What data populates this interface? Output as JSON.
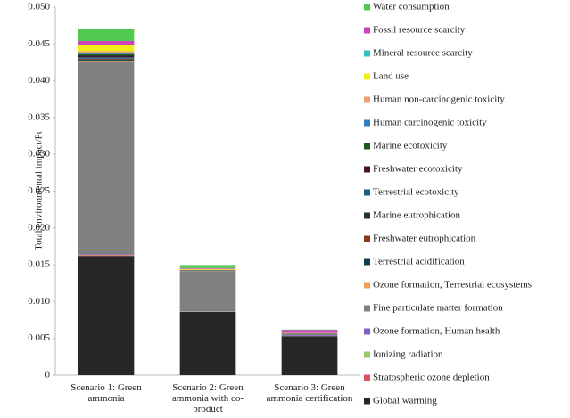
{
  "chart_data": {
    "type": "stacked_bar",
    "y_label": "Total environmental impact/Pt",
    "categories": [
      "Scenario 1: Green ammonia",
      "Scenario 2: Green ammonia with co-product",
      "Scenario 3: Green ammonia certification"
    ],
    "ylim": [
      0,
      0.05
    ],
    "yticks": [
      0,
      0.005,
      {
        "value": 0.01,
        "label": "0.010"
      },
      0.015,
      {
        "value": 0.02,
        "label": "0.020"
      },
      0.025,
      {
        "value": 0.03,
        "label": "0.030"
      },
      0.035,
      {
        "value": 0.04,
        "label": "0.040"
      },
      0.045,
      {
        "value": 0.05,
        "label": "0.050"
      }
    ],
    "series": [
      {
        "name": "Global warming",
        "color": "#262626",
        "values": [
          0.0162,
          0.0086,
          0.0053
        ]
      },
      {
        "name": "Stratospheric ozone depletion",
        "color": "#e05060",
        "values": [
          0.0001,
          2e-05,
          1e-05
        ]
      },
      {
        "name": "Ionizing radiation",
        "color": "#99c866",
        "values": [
          5e-05,
          2e-05,
          1e-05
        ]
      },
      {
        "name": "Ozone formation, Human health",
        "color": "#7f5fbf",
        "values": [
          0.0001,
          5e-05,
          0.0001
        ]
      },
      {
        "name": "Fine particulate matter formation",
        "color": "#808080",
        "values": [
          0.0261,
          0.0054,
          0.0002
        ]
      },
      {
        "name": "Ozone formation, Terrestrial ecosystems",
        "color": "#f0a050",
        "values": [
          0.0001,
          3e-05,
          1e-05
        ]
      },
      {
        "name": "Terrestrial acidification",
        "color": "#0f3f4f",
        "values": [
          0.0002,
          3e-05,
          1e-05
        ]
      },
      {
        "name": "Freshwater eutrophication",
        "color": "#8a3a1a",
        "values": [
          0.0001,
          2e-05,
          1e-05
        ]
      },
      {
        "name": "Marine eutrophication",
        "color": "#1f3a1f",
        "values": [
          5e-05,
          1e-05,
          1e-05
        ]
      },
      {
        "name": "Terrestrial ecotoxicity",
        "color": "#1f5f7f",
        "values": [
          0.0002,
          3e-05,
          1e-05
        ]
      },
      {
        "name": "Freshwater ecotoxicity",
        "color": "#4a1030",
        "values": [
          0.0002,
          3e-05,
          1e-05
        ]
      },
      {
        "name": "Marine ecotoxicity",
        "color": "#1a5a1a",
        "values": [
          0.0002,
          3e-05,
          1e-05
        ]
      },
      {
        "name": "Human carcinogenic toxicity",
        "color": "#2f7fc0",
        "values": [
          0.0001,
          2e-05,
          1e-05
        ]
      },
      {
        "name": "Human non-carcinogenic toxicity",
        "color": "#f0a070",
        "values": [
          0.0003,
          5e-05,
          2e-05
        ]
      },
      {
        "name": "Land use",
        "color": "#f2ee1a",
        "values": [
          0.0008,
          0.0001,
          2e-05
        ]
      },
      {
        "name": "Mineral resource scarcity",
        "color": "#2ec4c4",
        "values": [
          0.0001,
          2e-05,
          1e-05
        ]
      },
      {
        "name": "Fossil resource scarcity",
        "color": "#cc44bb",
        "values": [
          0.0005,
          0.0001,
          0.0004
        ]
      },
      {
        "name": "Water consumption",
        "color": "#4fc94f",
        "values": [
          0.0017,
          0.0004,
          5e-05
        ]
      }
    ]
  }
}
